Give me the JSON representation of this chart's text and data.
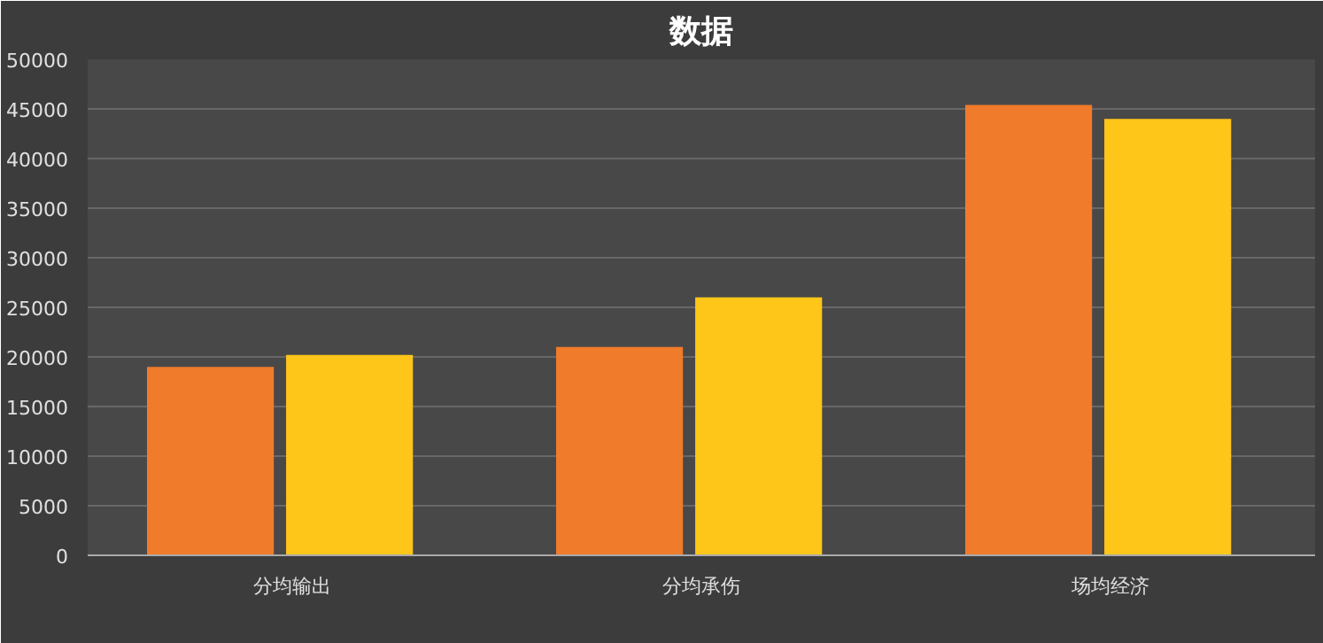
{
  "chart_data": {
    "type": "bar",
    "title": "数据",
    "categories": [
      "分均输出",
      "分均承伤",
      "场均经济"
    ],
    "series": [
      {
        "color": "#f07b2a",
        "values": [
          19000,
          21000,
          45400
        ]
      },
      {
        "color": "#ffc61a",
        "values": [
          20200,
          26000,
          44000
        ]
      }
    ],
    "ylim": [
      0,
      50000
    ],
    "yticks": [
      0,
      5000,
      10000,
      15000,
      20000,
      25000,
      30000,
      35000,
      40000,
      45000,
      50000
    ],
    "grid": "y"
  }
}
